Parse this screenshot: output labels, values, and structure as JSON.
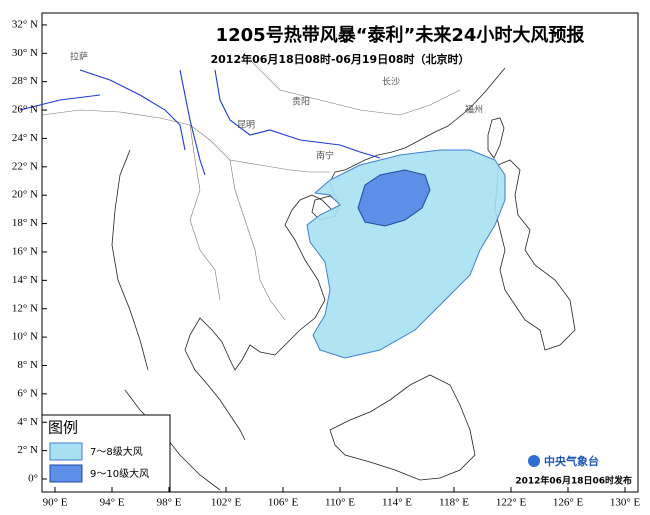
{
  "header": {
    "title": "1205号热带风暴“泰利”未来24小时大风预报",
    "subtitle": "2012年06月18日08时-06月19日08时（北京时）"
  },
  "latitude_ticks": [
    {
      "value": 32,
      "label": "32° N"
    },
    {
      "value": 30,
      "label": "30° N"
    },
    {
      "value": 28,
      "label": "28° N"
    },
    {
      "value": 26,
      "label": "26° N"
    },
    {
      "value": 24,
      "label": "24° N"
    },
    {
      "value": 22,
      "label": "22° N"
    },
    {
      "value": 20,
      "label": "20° N"
    },
    {
      "value": 18,
      "label": "18° N"
    },
    {
      "value": 16,
      "label": "16° N"
    },
    {
      "value": 14,
      "label": "14° N"
    },
    {
      "value": 12,
      "label": "12° N"
    },
    {
      "value": 10,
      "label": "10° N"
    },
    {
      "value": 8,
      "label": "8° N"
    },
    {
      "value": 6,
      "label": "6° N"
    },
    {
      "value": 4,
      "label": "4° N"
    },
    {
      "value": 2,
      "label": "2° N"
    },
    {
      "value": 0,
      "label": "0°"
    }
  ],
  "longitude_ticks": [
    {
      "value": 90,
      "label": "90° E"
    },
    {
      "value": 94,
      "label": "94° E"
    },
    {
      "value": 98,
      "label": "98° E"
    },
    {
      "value": 102,
      "label": "102° E"
    },
    {
      "value": 106,
      "label": "106° E"
    },
    {
      "value": 110,
      "label": "110° E"
    },
    {
      "value": 114,
      "label": "114° E"
    },
    {
      "value": 118,
      "label": "118° E"
    },
    {
      "value": 122,
      "label": "122° E"
    },
    {
      "value": 126,
      "label": "126° E"
    },
    {
      "value": 130,
      "label": "130° E"
    }
  ],
  "cities": [
    "拉萨",
    "昆明",
    "贵阳",
    "南宁",
    "长沙",
    "福州"
  ],
  "legend": {
    "title": "图例",
    "items": [
      "7～8级大风",
      "9～10级大风"
    ]
  },
  "footer": {
    "logo": "中央气象台",
    "issued": "2012年06月18日06时发布"
  }
}
